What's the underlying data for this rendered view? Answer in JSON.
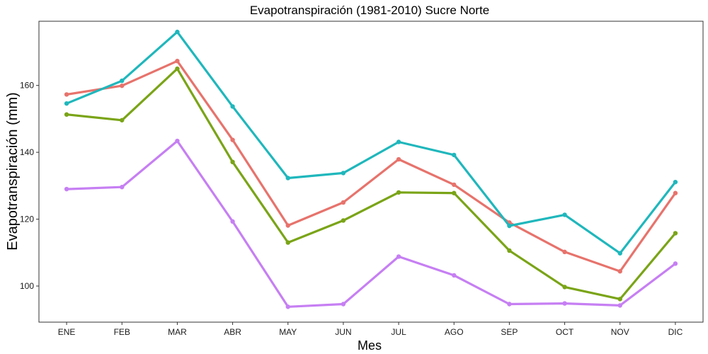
{
  "chart_data": {
    "type": "line",
    "title": "Evapotranspiración (1981-2010)  Sucre Norte",
    "xlabel": "Mes",
    "ylabel": "Evapotranspiración (mm)",
    "categories": [
      "ENE",
      "FEB",
      "MAR",
      "ABR",
      "MAY",
      "JUN",
      "JUL",
      "AGO",
      "SEP",
      "OCT",
      "NOV",
      "DIC"
    ],
    "ylim": [
      89.2,
      179.2
    ],
    "yticks": [
      100,
      120,
      140,
      160
    ],
    "grid": false,
    "legend": "none",
    "series": [
      {
        "color": "#e7736c",
        "values": [
          157.3,
          159.9,
          167.3,
          143.7,
          118.1,
          125.0,
          137.9,
          130.3,
          119.0,
          110.2,
          104.4,
          127.8
        ]
      },
      {
        "color": "#7aa417",
        "values": [
          151.3,
          149.6,
          165.0,
          137.1,
          113.0,
          119.6,
          128.0,
          127.8,
          110.6,
          99.7,
          96.1,
          115.8
        ]
      },
      {
        "color": "#1fb7bc",
        "values": [
          154.6,
          161.4,
          176.0,
          153.7,
          132.3,
          133.8,
          143.1,
          139.2,
          118.0,
          121.3,
          109.8,
          131.1
        ]
      },
      {
        "color": "#c67ff3",
        "values": [
          129.0,
          129.6,
          143.4,
          119.3,
          93.8,
          94.6,
          108.8,
          103.2,
          94.6,
          94.8,
          94.2,
          106.7
        ]
      }
    ]
  }
}
